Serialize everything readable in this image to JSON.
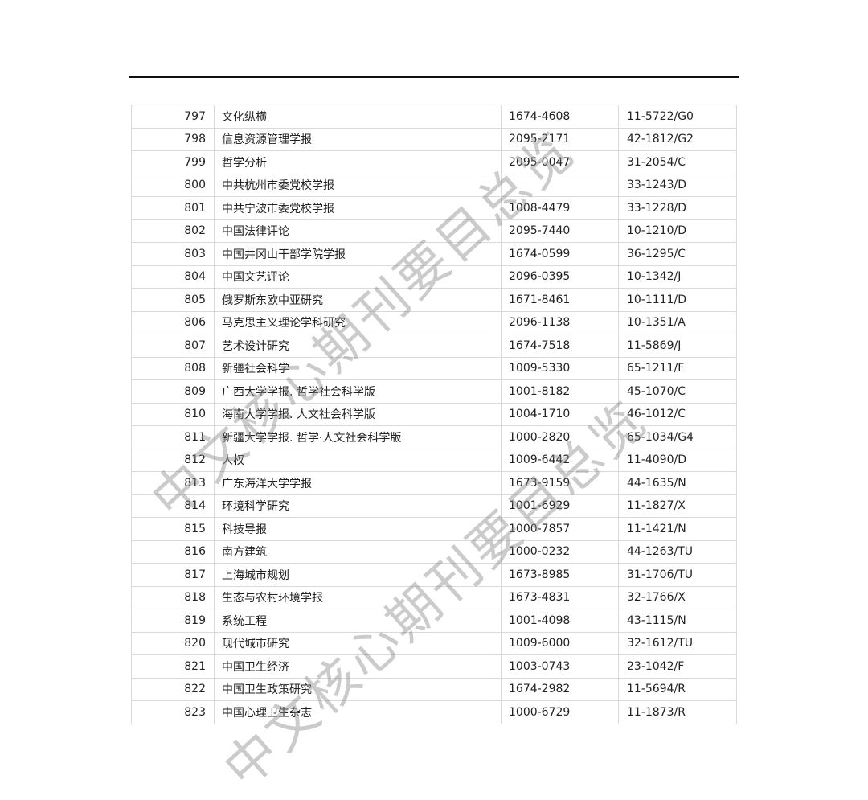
{
  "watermark": "中文核心期刊要目总览",
  "rows": [
    [
      "797",
      "文化纵横",
      "1674-4608",
      "11-5722/G0"
    ],
    [
      "798",
      "信息资源管理学报",
      "2095-2171",
      "42-1812/G2"
    ],
    [
      "799",
      "哲学分析",
      "2095-0047",
      "31-2054/C"
    ],
    [
      "800",
      "中共杭州市委党校学报",
      "",
      "33-1243/D"
    ],
    [
      "801",
      "中共宁波市委党校学报",
      "1008-4479",
      "33-1228/D"
    ],
    [
      "802",
      "中国法律评论",
      "2095-7440",
      "10-1210/D"
    ],
    [
      "803",
      "中国井冈山干部学院学报",
      "1674-0599",
      "36-1295/C"
    ],
    [
      "804",
      "中国文艺评论",
      "2096-0395",
      "10-1342/J"
    ],
    [
      "805",
      "俄罗斯东欧中亚研究",
      "1671-8461",
      "10-1111/D"
    ],
    [
      "806",
      "马克思主义理论学科研究",
      "2096-1138",
      "10-1351/A"
    ],
    [
      "807",
      "艺术设计研究",
      "1674-7518",
      "11-5869/J"
    ],
    [
      "808",
      "新疆社会科学",
      "1009-5330",
      "65-1211/F"
    ],
    [
      "809",
      "广西大学学报. 哲学社会科学版",
      "1001-8182",
      "45-1070/C"
    ],
    [
      "810",
      "海南大学学报. 人文社会科学版",
      "1004-1710",
      "46-1012/C"
    ],
    [
      "811",
      "新疆大学学报. 哲学·人文社会科学版",
      "1000-2820",
      "65-1034/G4"
    ],
    [
      "812",
      "人权",
      "1009-6442",
      "11-4090/D"
    ],
    [
      "813",
      "广东海洋大学学报",
      "1673-9159",
      "44-1635/N"
    ],
    [
      "814",
      "环境科学研究",
      "1001-6929",
      "11-1827/X"
    ],
    [
      "815",
      "科技导报",
      "1000-7857",
      "11-1421/N"
    ],
    [
      "816",
      "南方建筑",
      "1000-0232",
      "44-1263/TU"
    ],
    [
      "817",
      "上海城市规划",
      "1673-8985",
      "31-1706/TU"
    ],
    [
      "818",
      "生态与农村环境学报",
      "1673-4831",
      "32-1766/X"
    ],
    [
      "819",
      "系统工程",
      "1001-4098",
      "43-1115/N"
    ],
    [
      "820",
      "现代城市研究",
      "1009-6000",
      "32-1612/TU"
    ],
    [
      "821",
      "中国卫生经济",
      "1003-0743",
      "23-1042/F"
    ],
    [
      "822",
      "中国卫生政策研究",
      "1674-2982",
      "11-5694/R"
    ],
    [
      "823",
      "中国心理卫生杂志",
      "1000-6729",
      "11-1873/R"
    ]
  ]
}
